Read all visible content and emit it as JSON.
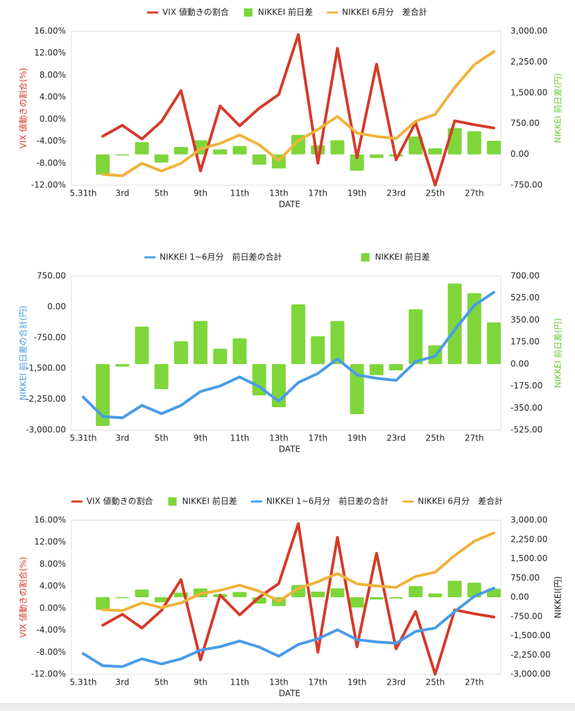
{
  "chart_data": [
    {
      "type": "combo",
      "categories": [
        "5.31th",
        null,
        "3rd",
        null,
        "5th",
        null,
        "9th",
        null,
        "11th",
        null,
        "13th",
        null,
        "17th",
        null,
        "19th",
        null,
        "23rd",
        null,
        "25th",
        null,
        "27th",
        null
      ],
      "x_label": "DATE",
      "y_label": "VIX 値動きの割合(%)",
      "y_label_color": "#d63a2a",
      "y2_label": "NIKKEI 前日差(円)",
      "y2_label_color": "#6cc93a",
      "ylim": [
        -12,
        16
      ],
      "yticks": [
        {
          "value": -12,
          "label": "-12.00%"
        },
        {
          "value": -8,
          "label": "-8.00%"
        },
        {
          "value": -4,
          "label": "-4.00%"
        },
        {
          "value": 0,
          "label": "0.00%"
        },
        {
          "value": 4,
          "label": "4.00%"
        },
        {
          "value": 8,
          "label": "8.00%"
        },
        {
          "value": 12,
          "label": "12.00%"
        },
        {
          "value": 16,
          "label": "16.00%"
        }
      ],
      "y2lim": [
        -750,
        3000
      ],
      "y2ticks": [
        {
          "value": -750,
          "label": "-750.00"
        },
        {
          "value": 0,
          "label": "0.00"
        },
        {
          "value": 750,
          "label": "750.00"
        },
        {
          "value": 1500,
          "label": "1,500.00"
        },
        {
          "value": 2250,
          "label": "2,250.00"
        },
        {
          "value": 3000,
          "label": "3,000.00"
        }
      ],
      "series": [
        {
          "name": "VIX 値動きの割合",
          "type": "line",
          "color": "#d63a2a",
          "axis": "y",
          "values": [
            null,
            -3.1,
            -1.1,
            -3.6,
            -0.4,
            5.2,
            -9.4,
            2.4,
            -1.2,
            2.0,
            4.5,
            15.4,
            -8.0,
            12.9,
            -7.0,
            10.0,
            -7.4,
            -0.6,
            -12.0,
            -0.3,
            -1.0,
            -1.6
          ]
        },
        {
          "name": "NIKKEI 前日差",
          "type": "bar",
          "color": "#7ed63a",
          "axis": "y2",
          "values": [
            null,
            -492,
            -20,
            298,
            -199,
            182,
            343,
            122,
            204,
            -249,
            -343,
            475,
            221,
            343,
            -398,
            -88,
            -50,
            436,
            149,
            641,
            564,
            331
          ]
        },
        {
          "name": "NIKKEI 6月分　差合計",
          "type": "line",
          "color": "#f0b23a",
          "axis": "y2",
          "values": [
            null,
            -487,
            -521,
            -218,
            -403,
            -218,
            134,
            269,
            471,
            235,
            -151,
            336,
            605,
            924,
            521,
            437,
            387,
            807,
            975,
            1630,
            2185,
            2504
          ]
        }
      ]
    },
    {
      "type": "combo",
      "categories": [
        "5.31th",
        null,
        "3rd",
        null,
        "5th",
        null,
        "9th",
        null,
        "11th",
        null,
        "13th",
        null,
        "17th",
        null,
        "19th",
        null,
        "23rd",
        null,
        "25th",
        null,
        "27th",
        null
      ],
      "x_label": "DATE",
      "y_label": "NIKKEI 前日差の合計(円)",
      "y_label_color": "#4a9be8",
      "y2_label": "NIKKEI 前日差(円)",
      "y2_label_color": "#6cc93a",
      "ylim": [
        -3000,
        750
      ],
      "yticks": [
        {
          "value": -3000,
          "label": "-3,000.00"
        },
        {
          "value": -2250,
          "label": "-2,250.00"
        },
        {
          "value": -1500,
          "label": "-1,500.00"
        },
        {
          "value": -750,
          "label": "-750.00"
        },
        {
          "value": 0,
          "label": "0.00"
        },
        {
          "value": 750,
          "label": "750.00"
        }
      ],
      "y2lim": [
        -525,
        700
      ],
      "y2ticks": [
        {
          "value": -525,
          "label": "-525.00"
        },
        {
          "value": -350,
          "label": "-350.00"
        },
        {
          "value": -175,
          "label": "-175.00"
        },
        {
          "value": 0,
          "label": "0.00"
        },
        {
          "value": 175,
          "label": "175.00"
        },
        {
          "value": 350,
          "label": "350.00"
        },
        {
          "value": 525,
          "label": "525.00"
        },
        {
          "value": 700,
          "label": "700.00"
        }
      ],
      "series": [
        {
          "name": "NIKKEI 1~6月分　前日差の合計",
          "type": "line",
          "color": "#4a9be8",
          "axis": "y",
          "values": [
            -2196,
            -2669,
            -2703,
            -2399,
            -2601,
            -2399,
            -2061,
            -1926,
            -1706,
            -1943,
            -2297,
            -1841,
            -1622,
            -1267,
            -1655,
            -1740,
            -1791,
            -1334,
            -1199,
            -557,
            34,
            355
          ]
        },
        {
          "name": "NIKKEI 前日差",
          "type": "bar",
          "color": "#7ed63a",
          "axis": "y2",
          "values": [
            null,
            -492,
            -20,
            298,
            -199,
            182,
            343,
            122,
            204,
            -249,
            -343,
            475,
            221,
            343,
            -398,
            -88,
            -50,
            436,
            149,
            641,
            564,
            331
          ]
        }
      ]
    },
    {
      "type": "combo",
      "categories": [
        "5.31th",
        null,
        "3rd",
        null,
        "5th",
        null,
        "9th",
        null,
        "11th",
        null,
        "13th",
        null,
        "17th",
        null,
        "19th",
        null,
        "23rd",
        null,
        "25th",
        null,
        "27th",
        null
      ],
      "x_label": "DATE",
      "y_label": "VIX 値動きの割合(%)",
      "y_label_color": "#d63a2a",
      "y2_label": "NIKKEI(円)",
      "y2_label_color": "#222222",
      "ylim": [
        -12,
        16
      ],
      "yticks": [
        {
          "value": -12,
          "label": "-12.00%"
        },
        {
          "value": -8,
          "label": "-8.00%"
        },
        {
          "value": -4,
          "label": "-4.00%"
        },
        {
          "value": 0,
          "label": "0.00%"
        },
        {
          "value": 4,
          "label": "4.00%"
        },
        {
          "value": 8,
          "label": "8.00%"
        },
        {
          "value": 12,
          "label": "12.00%"
        },
        {
          "value": 16,
          "label": "16.00%"
        }
      ],
      "y2lim": [
        -3000,
        3000
      ],
      "y2ticks": [
        {
          "value": -3000,
          "label": "-3,000.00"
        },
        {
          "value": -2250,
          "label": "-2,250.00"
        },
        {
          "value": -1500,
          "label": "-1,500.00"
        },
        {
          "value": -750,
          "label": "-750.00"
        },
        {
          "value": 0,
          "label": "0.00"
        },
        {
          "value": 750,
          "label": "750.00"
        },
        {
          "value": 1500,
          "label": "1,500.00"
        },
        {
          "value": 2250,
          "label": "2,250.00"
        },
        {
          "value": 3000,
          "label": "3,000.00"
        }
      ],
      "series": [
        {
          "name": "VIX 値動きの割合",
          "type": "line",
          "color": "#d63a2a",
          "axis": "y",
          "values": [
            null,
            -3.1,
            -1.1,
            -3.6,
            -0.4,
            5.2,
            -9.4,
            2.4,
            -1.2,
            2.0,
            4.5,
            15.4,
            -8.0,
            12.9,
            -7.0,
            10.0,
            -7.4,
            -0.6,
            -12.0,
            -0.3,
            -1.0,
            -1.6
          ]
        },
        {
          "name": "NIKKEI 前日差",
          "type": "bar",
          "color": "#7ed63a",
          "axis": "y2",
          "values": [
            null,
            -492,
            -20,
            298,
            -199,
            182,
            343,
            122,
            204,
            -249,
            -343,
            475,
            221,
            343,
            -398,
            -88,
            -50,
            436,
            149,
            641,
            564,
            331
          ]
        },
        {
          "name": "NIKKEI 1~6月分　前日差の合計",
          "type": "line",
          "color": "#4a9be8",
          "axis": "y2",
          "values": [
            -2196,
            -2669,
            -2703,
            -2399,
            -2601,
            -2399,
            -2061,
            -1926,
            -1706,
            -1943,
            -2297,
            -1841,
            -1622,
            -1267,
            -1655,
            -1740,
            -1791,
            -1334,
            -1199,
            -557,
            34,
            355
          ]
        },
        {
          "name": "NIKKEI 6月分　差合計",
          "type": "line",
          "color": "#f0b23a",
          "axis": "y2",
          "values": [
            null,
            -487,
            -521,
            -218,
            -403,
            -218,
            134,
            269,
            471,
            235,
            -151,
            336,
            605,
            924,
            521,
            437,
            387,
            807,
            975,
            1630,
            2185,
            2504
          ]
        }
      ]
    }
  ]
}
